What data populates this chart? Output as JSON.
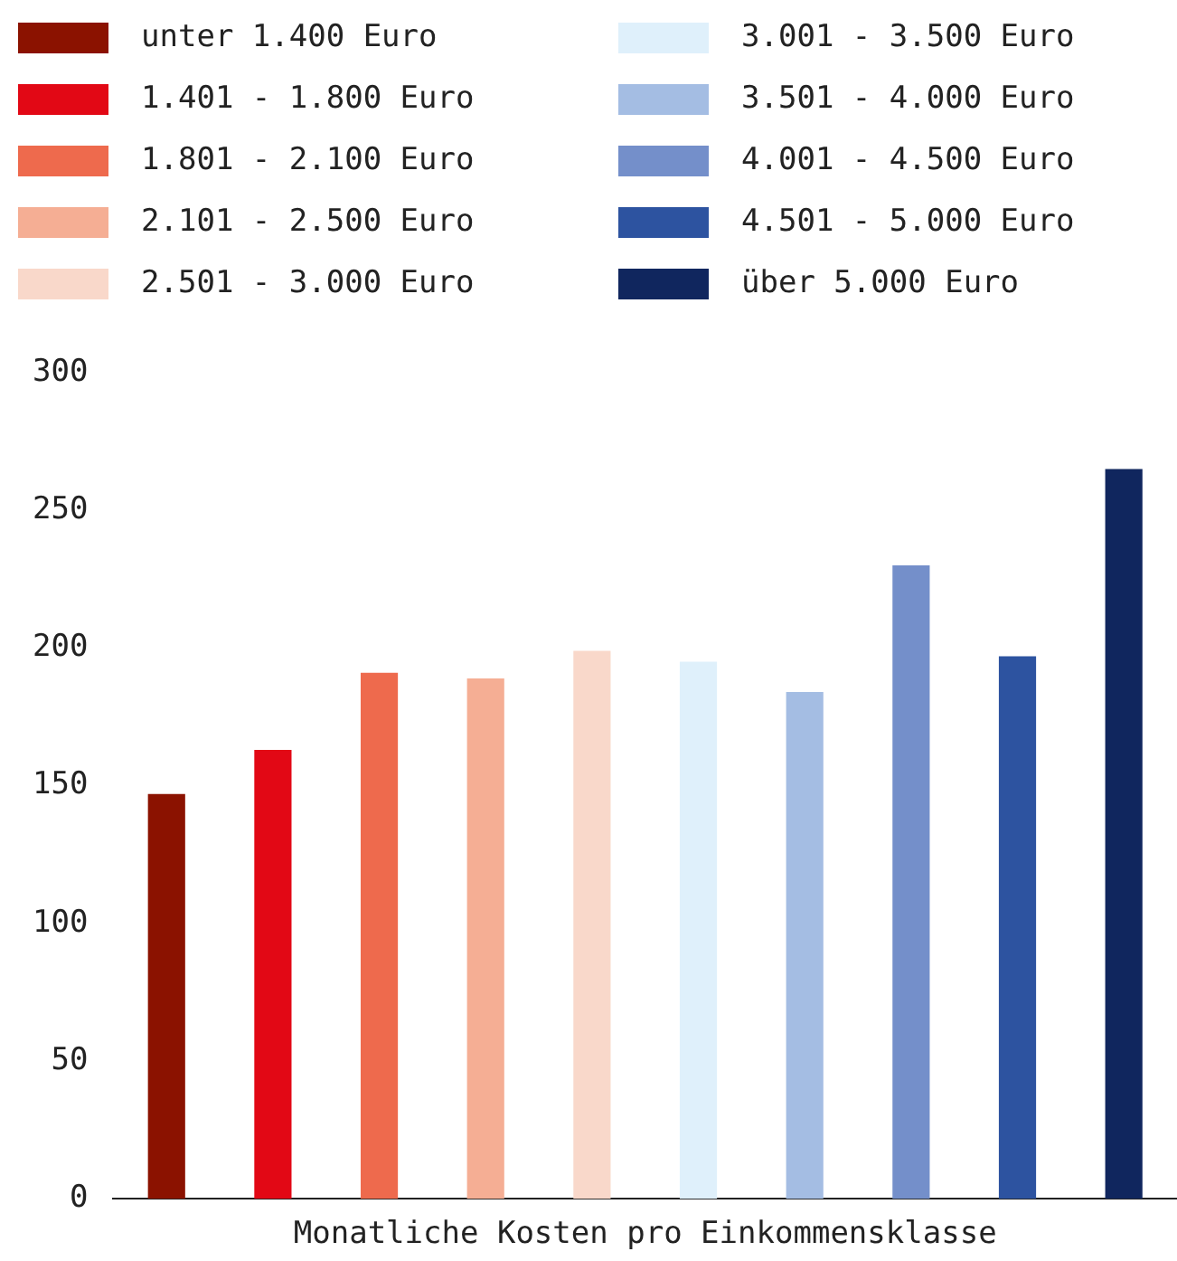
{
  "chart_data": {
    "type": "bar",
    "xlabel": "Monatliche Kosten pro Einkommensklasse",
    "categories": [
      null,
      null,
      null,
      null,
      null,
      null,
      null,
      null,
      null,
      null
    ],
    "series": [
      {
        "name": "unter 1.400 Euro",
        "color": "#8b1200",
        "values": [
          147,
          null,
          null,
          null,
          null,
          null,
          null,
          null,
          null,
          null
        ]
      },
      {
        "name": "1.401 - 1.800 Euro",
        "color": "#e20815",
        "values": [
          null,
          163,
          null,
          null,
          null,
          null,
          null,
          null,
          null,
          null
        ]
      },
      {
        "name": "1.801 - 2.100 Euro",
        "color": "#ee6a4d",
        "values": [
          null,
          null,
          191,
          null,
          null,
          null,
          null,
          null,
          null,
          null
        ]
      },
      {
        "name": "2.101 - 2.500 Euro",
        "color": "#f5ae94",
        "values": [
          null,
          null,
          null,
          189,
          null,
          null,
          null,
          null,
          null,
          null
        ]
      },
      {
        "name": "2.501 - 3.000 Euro",
        "color": "#f9d8ca",
        "values": [
          null,
          null,
          null,
          null,
          199,
          null,
          null,
          null,
          null,
          null
        ]
      },
      {
        "name": "3.001 - 3.500 Euro",
        "color": "#dff0fb",
        "values": [
          null,
          null,
          null,
          null,
          null,
          195,
          null,
          null,
          null,
          null
        ]
      },
      {
        "name": "3.501 - 4.000 Euro",
        "color": "#a4bde3",
        "values": [
          null,
          null,
          null,
          null,
          null,
          null,
          184,
          null,
          null,
          null
        ]
      },
      {
        "name": "4.001 - 4.500 Euro",
        "color": "#748fca",
        "values": [
          null,
          null,
          null,
          null,
          null,
          null,
          null,
          230,
          null,
          null
        ]
      },
      {
        "name": "4.501 - 5.000 Euro",
        "color": "#2d53a0",
        "values": [
          null,
          null,
          null,
          null,
          null,
          null,
          null,
          null,
          197,
          null
        ]
      },
      {
        "name": "über 5.000 Euro",
        "color": "#10265e",
        "values": [
          null,
          null,
          null,
          null,
          null,
          null,
          null,
          null,
          null,
          265
        ]
      }
    ],
    "ylim": [
      0,
      300
    ],
    "yticks": [
      0,
      50,
      100,
      150,
      200,
      250,
      300
    ],
    "grid": false,
    "legend": "top",
    "tick_labels": "y"
  }
}
